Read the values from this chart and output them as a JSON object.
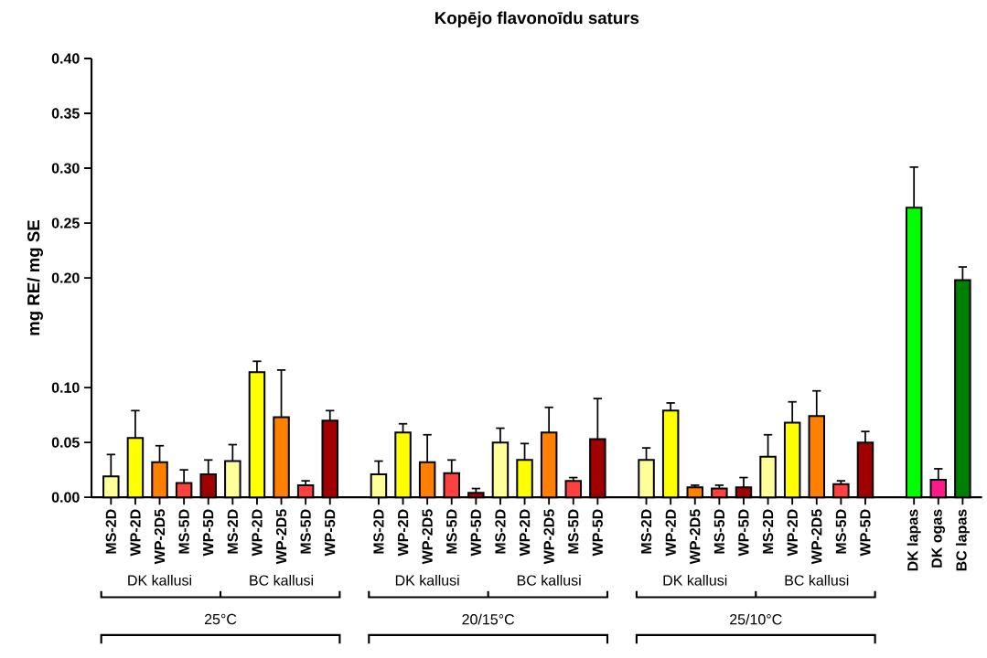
{
  "chart_data": {
    "type": "bar",
    "title": "Kopējo flavonoīdu saturs",
    "ylabel": "mg RE/ mg SE",
    "categories": [
      "MS-2D",
      "WP-2D",
      "WP-2D5",
      "MS-5D",
      "WP-5D",
      "MS-2D",
      "WP-2D",
      "WP-2D5",
      "MS-5D",
      "WP-5D",
      "MS-2D",
      "WP-2D",
      "WP-2D5",
      "MS-5D",
      "WP-5D",
      "MS-2D",
      "WP-2D",
      "WP-2D5",
      "MS-5D",
      "WP-5D",
      "MS-2D",
      "WP-2D",
      "WP-2D5",
      "MS-5D",
      "WP-5D",
      "MS-2D",
      "WP-2D",
      "WP-2D5",
      "MS-5D",
      "WP-5D",
      "DK lapas",
      "DK ogas",
      "BC lapas"
    ],
    "values": [
      0.019,
      0.054,
      0.032,
      0.013,
      0.021,
      0.033,
      0.114,
      0.073,
      0.011,
      0.07,
      0.021,
      0.059,
      0.032,
      0.022,
      0.004,
      0.05,
      0.034,
      0.059,
      0.015,
      0.053,
      0.034,
      0.079,
      0.009,
      0.008,
      0.009,
      0.037,
      0.068,
      0.074,
      0.012,
      0.05,
      0.264,
      0.016,
      0.198
    ],
    "errors": [
      0.02,
      0.025,
      0.015,
      0.012,
      0.013,
      0.015,
      0.01,
      0.043,
      0.004,
      0.009,
      0.012,
      0.008,
      0.025,
      0.012,
      0.004,
      0.013,
      0.015,
      0.023,
      0.003,
      0.037,
      0.011,
      0.007,
      0.002,
      0.003,
      0.009,
      0.02,
      0.019,
      0.023,
      0.003,
      0.01,
      0.037,
      0.01,
      0.012
    ],
    "colors": [
      "#ffff99",
      "#ffff00",
      "#ff8000",
      "#ff4040",
      "#a00000",
      "#ffff99",
      "#ffff00",
      "#ff8000",
      "#ff4040",
      "#a00000",
      "#ffff99",
      "#ffff00",
      "#ff8000",
      "#ff4040",
      "#a00000",
      "#ffff99",
      "#ffff00",
      "#ff8000",
      "#ff4040",
      "#a00000",
      "#ffff99",
      "#ffff00",
      "#ff8000",
      "#ff4040",
      "#a00000",
      "#ffff99",
      "#ffff00",
      "#ff8000",
      "#ff4040",
      "#a00000",
      "#00ff00",
      "#ff1a8c",
      "#008000"
    ],
    "ylim": [
      0,
      0.4
    ],
    "yticks": [
      {
        "value": 0,
        "label": "0.00"
      },
      {
        "value": 0.05,
        "label": "0.05"
      },
      {
        "value": 0.1,
        "label": "0.10"
      },
      {
        "value": 0.2,
        "label": "0.20"
      },
      {
        "value": 0.25,
        "label": "0.25"
      },
      {
        "value": 0.3,
        "label": "0.30"
      },
      {
        "value": 0.35,
        "label": "0.35"
      },
      {
        "value": 0.4,
        "label": "0.40"
      }
    ],
    "annotations": [
      "DK kallusi",
      "BC kallusi",
      "DK kallusi",
      "BC kallusi",
      "DK kallusi",
      "BC kallusi",
      "25°C",
      "20/15°C",
      "25/10°C"
    ]
  }
}
